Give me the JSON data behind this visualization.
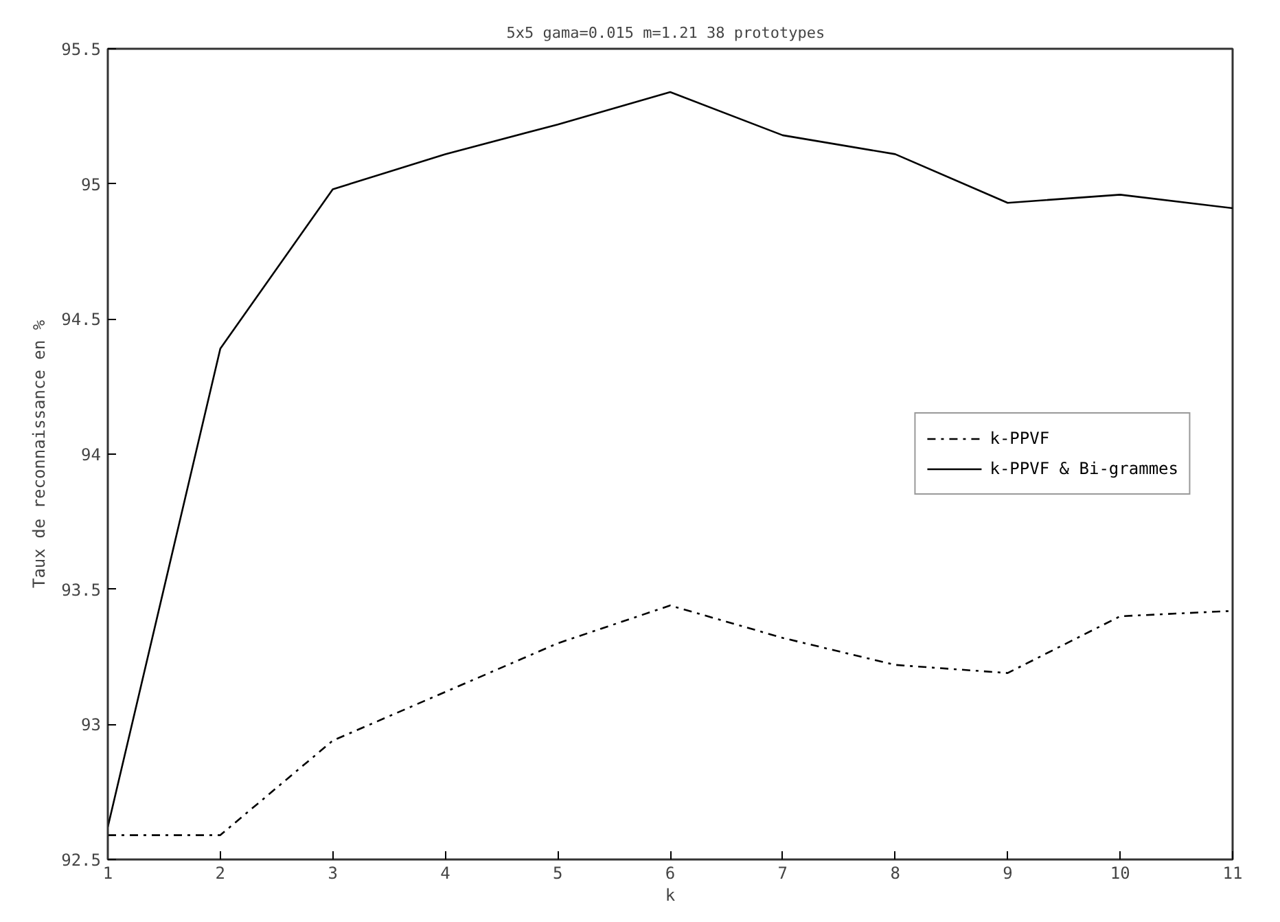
{
  "chart_data": {
    "type": "line",
    "title": "5x5  gama=0.015 m=1.21 38 prototypes",
    "xlabel": "k",
    "ylabel": "Taux de reconnaissance en %",
    "x": [
      1,
      2,
      3,
      4,
      5,
      6,
      7,
      8,
      9,
      10,
      11
    ],
    "series": [
      {
        "name": "k-PPVF",
        "color": "#000000",
        "line_style": "dashdot",
        "values": [
          92.59,
          92.59,
          92.94,
          93.12,
          93.3,
          93.44,
          93.32,
          93.22,
          93.19,
          93.4,
          93.42
        ]
      },
      {
        "name": "k-PPVF & Bi-grammes",
        "color": "#000000",
        "line_style": "solid",
        "values": [
          92.62,
          94.39,
          94.98,
          95.11,
          95.22,
          95.34,
          95.18,
          95.11,
          94.93,
          94.96,
          94.91
        ]
      }
    ],
    "xlim": [
      1,
      11
    ],
    "xticks": [
      1,
      2,
      3,
      4,
      5,
      6,
      7,
      8,
      9,
      10,
      11
    ],
    "ylim": [
      92.5,
      95.5
    ],
    "yticks": [
      92.5,
      93,
      93.5,
      94,
      94.5,
      95,
      95.5
    ],
    "grid": false,
    "legend": "right",
    "marker": "none"
  }
}
